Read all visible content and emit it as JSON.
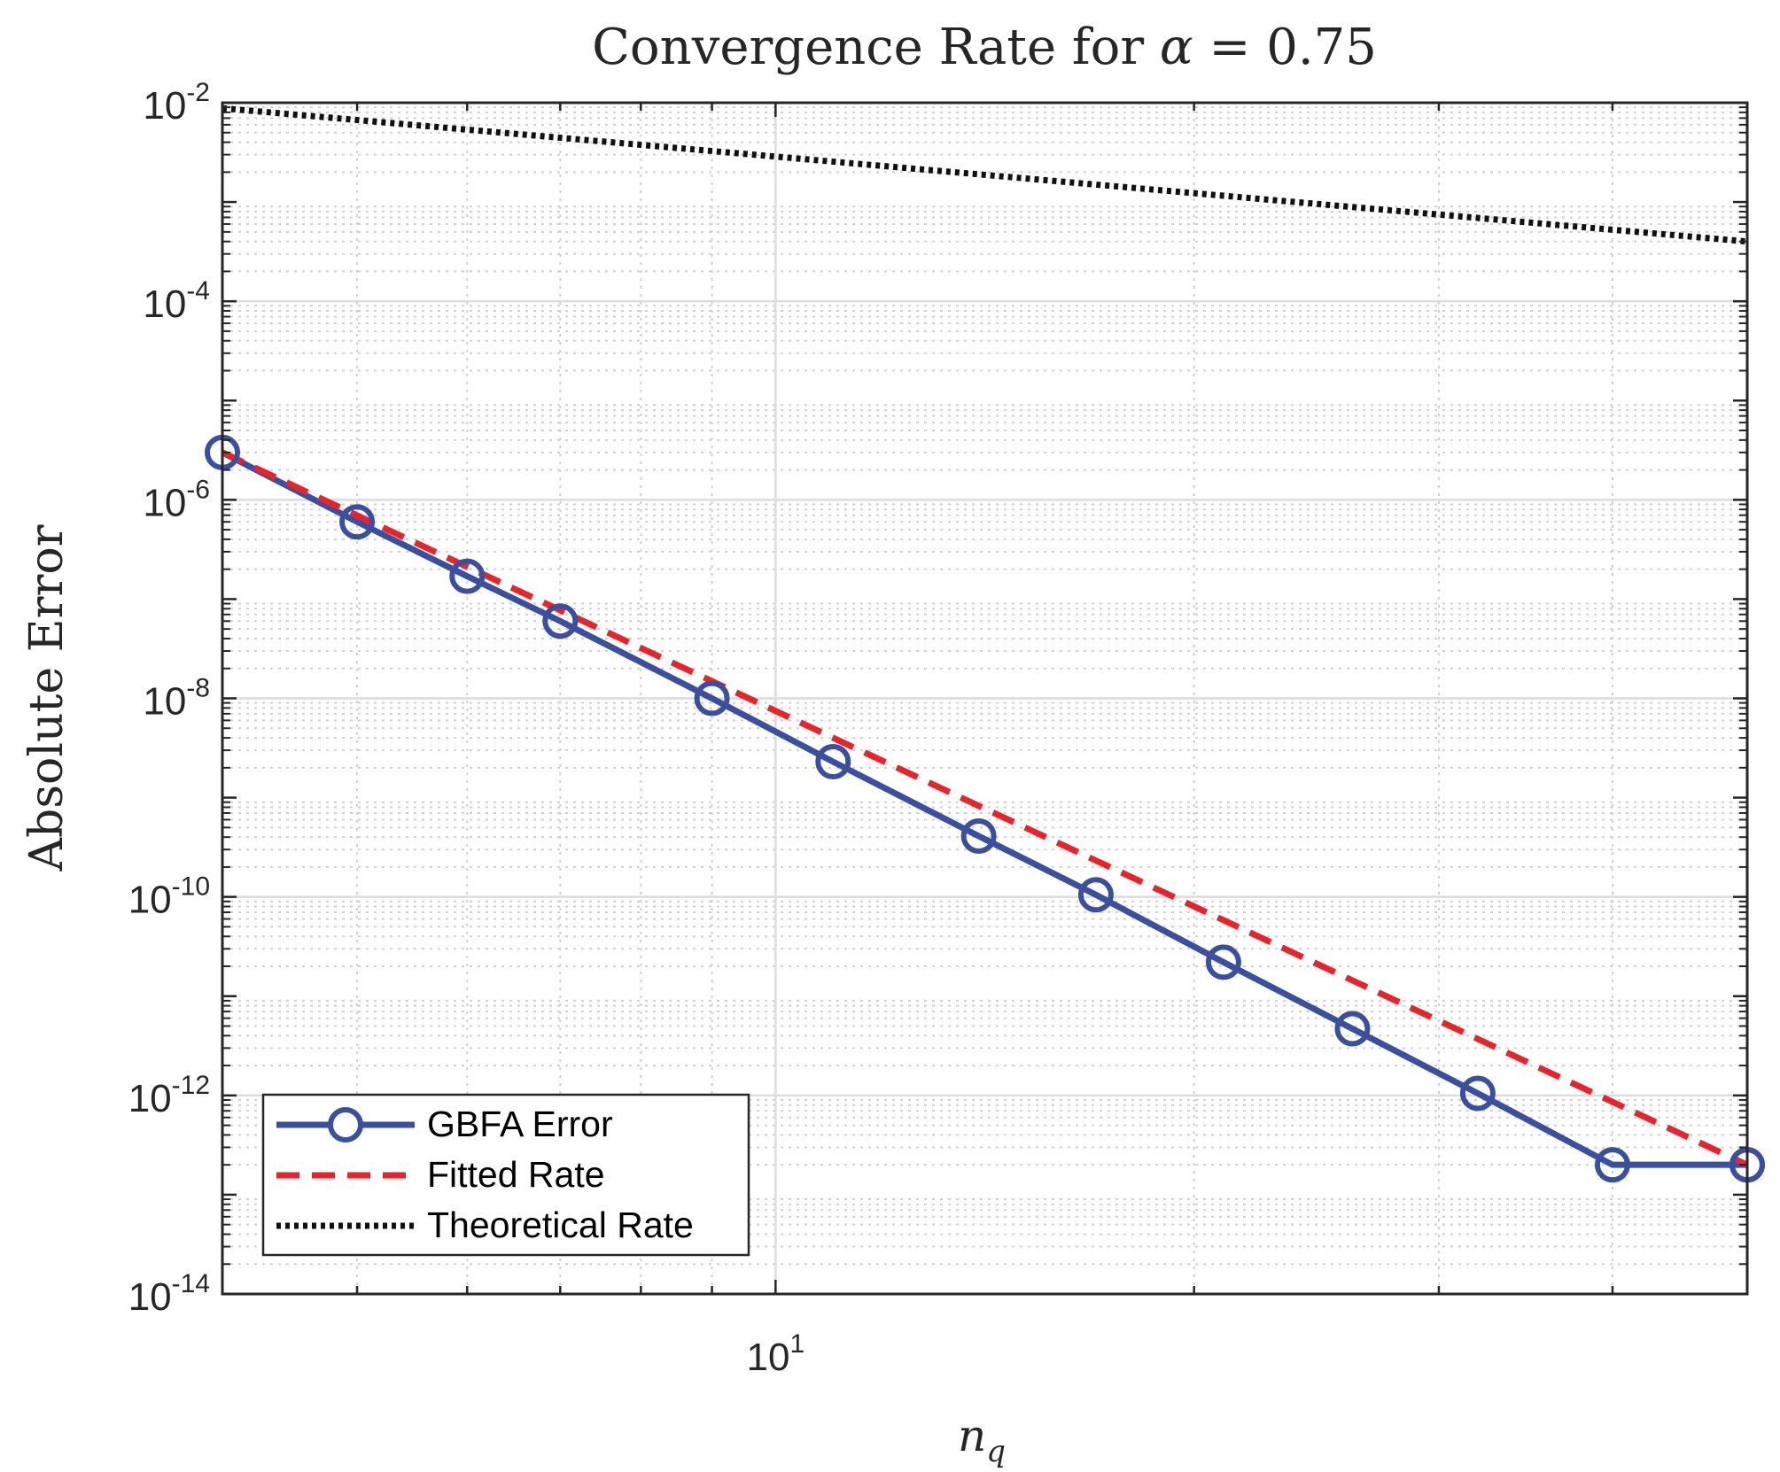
{
  "chart_data": {
    "type": "line",
    "title_prefix": "Convergence Rate for ",
    "title_symbol": "α",
    "title_suffix": " = 0.75",
    "xlabel_main": "n",
    "xlabel_sub": "q",
    "ylabel": "Absolute Error",
    "xscale": "log",
    "yscale": "log",
    "xlim": [
      4,
      50
    ],
    "ylim": [
      1e-14,
      0.01
    ],
    "grid": true,
    "legend_position": "bottom-left",
    "x_ticks": [
      {
        "base": "10",
        "exp": "1",
        "value": 10
      }
    ],
    "y_ticks": [
      {
        "base": "10",
        "exp": "-2",
        "value": 0.01
      },
      {
        "base": "10",
        "exp": "-4",
        "value": 0.0001
      },
      {
        "base": "10",
        "exp": "-6",
        "value": 1e-06
      },
      {
        "base": "10",
        "exp": "-8",
        "value": 1e-08
      },
      {
        "base": "10",
        "exp": "-10",
        "value": 1e-10
      },
      {
        "base": "10",
        "exp": "-12",
        "value": 1e-12
      },
      {
        "base": "10",
        "exp": "-14",
        "value": 1e-14
      }
    ],
    "series": [
      {
        "name": "GBFA Error",
        "color": "#3a4fa0",
        "style": "solid",
        "marker": "circle",
        "x": [
          4,
          5,
          6,
          7,
          9,
          11,
          14,
          17,
          21,
          26,
          32,
          40,
          50
        ],
        "y": [
          3e-06,
          6e-07,
          1.7e-07,
          6e-08,
          1e-08,
          2.3e-09,
          4.1e-10,
          1.05e-10,
          2.2e-11,
          4.7e-12,
          1.05e-12,
          2e-13,
          2e-13
        ]
      },
      {
        "name": "Fitted Rate",
        "color": "#e8242a",
        "style": "dashed",
        "marker": "none",
        "x": [
          4,
          50
        ],
        "y": [
          3e-06,
          2e-13
        ]
      },
      {
        "name": "Theoretical Rate",
        "color": "#111111",
        "style": "dotted",
        "marker": "none",
        "x": [
          4,
          50
        ],
        "y": [
          0.0088,
          0.0004
        ]
      }
    ]
  },
  "colors": {
    "axis": "#262626",
    "grid_major": "#dcdcdc",
    "grid_minor": "#d0d0d0",
    "background": "#ffffff"
  }
}
